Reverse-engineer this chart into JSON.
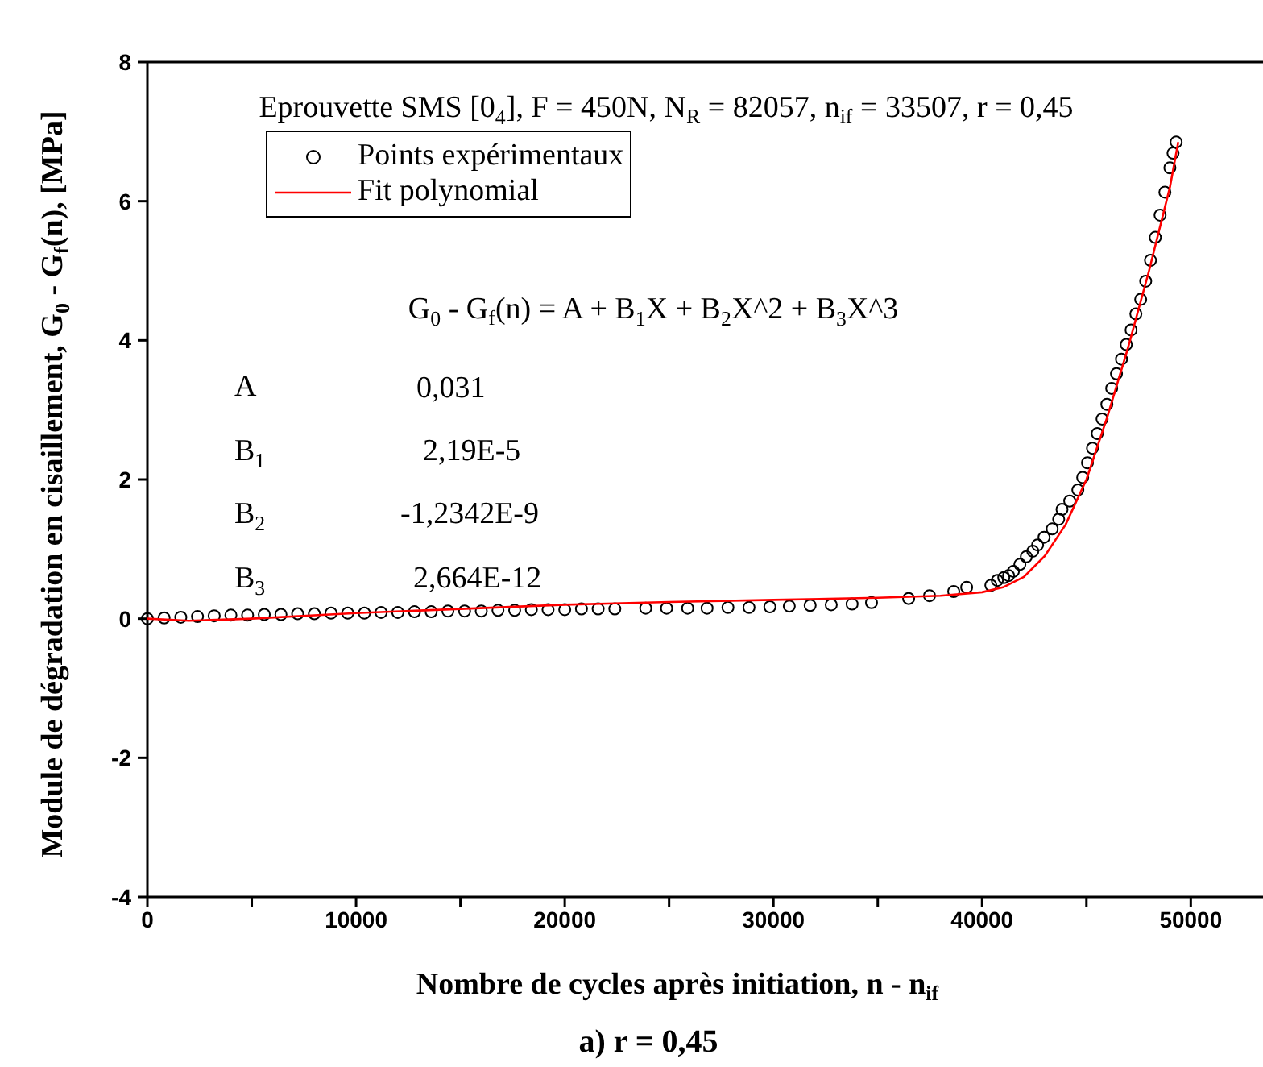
{
  "chart_data": {
    "type": "scatter",
    "xlabel": "Nombre de cycles après initiation, n - n$_{if}$",
    "ylabel": "Module de dégradation en cisaillement, G$_{0}$ - G$_{f}$(n), [MPa]",
    "annotations": [
      "Eprouvette SMS [0$_{4}$], F = 450N, N$_{R}$ = 82057, n$_{if}$ = 33507, r = 0,45",
      "G$_{0}$ - G$_{f}$(n) = A + B$_{1}$X + B$_{2}$X^2 + B$_{3}$X^3",
      "A",
      "0,031",
      "B$_{1}$",
      "2,19E-5",
      "B$_{2}$",
      "-1,2342E-9",
      "B$_{3}$",
      "2,664E-12",
      "a) r = 0,45"
    ],
    "x": [
      0,
      800,
      1600,
      2400,
      3200,
      4000,
      4800,
      5600,
      6400,
      7200,
      8000,
      8800,
      9600,
      10400,
      11200,
      12000,
      12800,
      13600,
      14400,
      15200,
      16000,
      16800,
      17600,
      18400,
      19200,
      20000,
      20800,
      21600,
      22400,
      23880,
      24880,
      25890,
      26820,
      27820,
      28830,
      29830,
      30760,
      31760,
      32770,
      33770,
      34700,
      36480,
      37480,
      38640,
      39260,
      40420,
      40730,
      41040,
      41270,
      41500,
      41810,
      42120,
      42430,
      42660,
      42970,
      43360,
      43670,
      43830,
      44200,
      44590,
      44820,
      45050,
      45290,
      45520,
      45750,
      45980,
      46210,
      46440,
      46680,
      46910,
      47140,
      47370,
      47600,
      47840,
      48070,
      48300,
      48530,
      48760,
      49000,
      49150,
      49300
    ],
    "xlim": [
      0,
      53500
    ],
    "xticks": [
      0,
      {
        "value": 5000,
        "label": null
      },
      10000,
      {
        "value": 15000,
        "label": null
      },
      20000,
      {
        "value": 25000,
        "label": null
      },
      30000,
      {
        "value": 35000,
        "label": null
      },
      40000,
      {
        "value": 45000,
        "label": null
      },
      50000
    ],
    "ylim": [
      -4,
      8
    ],
    "yticks": [
      -4,
      -2,
      0,
      2,
      4,
      6,
      8
    ],
    "grid": false,
    "legend": "top left",
    "marker": "circle",
    "series": [
      {
        "name": "Points expérimentaux",
        "color": "#000000",
        "values": [
          0.0,
          0.01,
          0.02,
          0.03,
          0.04,
          0.05,
          0.05,
          0.06,
          0.06,
          0.07,
          0.07,
          0.08,
          0.08,
          0.08,
          0.09,
          0.09,
          0.1,
          0.1,
          0.11,
          0.11,
          0.11,
          0.12,
          0.12,
          0.13,
          0.13,
          0.13,
          0.14,
          0.14,
          0.14,
          0.15,
          0.15,
          0.15,
          0.15,
          0.16,
          0.16,
          0.17,
          0.18,
          0.19,
          0.2,
          0.21,
          0.23,
          0.29,
          0.33,
          0.39,
          0.45,
          0.48,
          0.55,
          0.59,
          0.62,
          0.68,
          0.78,
          0.89,
          0.97,
          1.06,
          1.17,
          1.29,
          1.43,
          1.57,
          1.69,
          1.85,
          2.03,
          2.24,
          2.45,
          2.66,
          2.87,
          3.08,
          3.31,
          3.52,
          3.73,
          3.94,
          4.15,
          4.38,
          4.59,
          4.85,
          5.15,
          5.48,
          5.8,
          6.13,
          6.48,
          6.69,
          6.85
        ]
      },
      {
        "name": "Fit polynomial",
        "type": "line",
        "color": "#ff0000",
        "marker": "none",
        "line_style": "solid",
        "x": [
          0,
          2000,
          5000,
          10000,
          15000,
          20000,
          25000,
          30000,
          35000,
          38000,
          40000,
          41000,
          42000,
          43000,
          44000,
          45000,
          46000,
          47000,
          48000,
          49000,
          49400
        ],
        "values": [
          0.0,
          -0.03,
          0.0,
          0.08,
          0.14,
          0.2,
          0.24,
          0.27,
          0.3,
          0.33,
          0.38,
          0.45,
          0.6,
          0.9,
          1.35,
          2.0,
          2.9,
          3.9,
          5.0,
          6.2,
          6.85
        ]
      }
    ]
  }
}
